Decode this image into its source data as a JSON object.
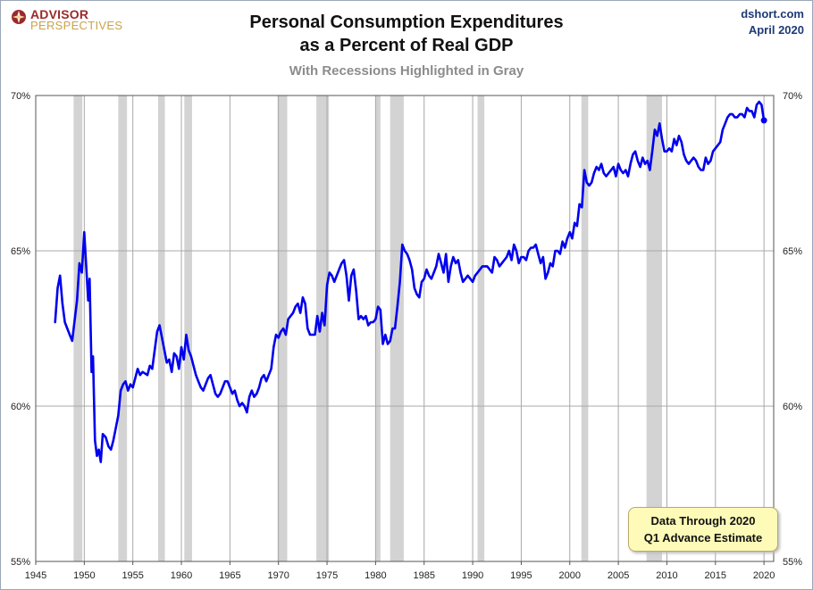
{
  "logo": {
    "line1": "ADVISOR",
    "line2": "PERSPECTIVES",
    "icon": "compass-icon"
  },
  "header": {
    "title_line1": "Personal Consumption Expenditures",
    "title_line2": "as a Percent of Real GDP",
    "subtitle": "With Recessions Highlighted in Gray"
  },
  "source": {
    "site": "dshort.com",
    "date": "April 2020"
  },
  "note": {
    "line1": "Data Through 2020",
    "line2": "Q1 Advance Estimate"
  },
  "chart_data": {
    "type": "line",
    "title": "Personal Consumption Expenditures as a Percent of Real GDP",
    "subtitle": "With Recessions Highlighted in Gray",
    "xlim": [
      1945,
      2021
    ],
    "ylim": [
      55,
      70
    ],
    "x_ticks": [
      1945,
      1950,
      1955,
      1960,
      1965,
      1970,
      1975,
      1980,
      1985,
      1990,
      1995,
      2000,
      2005,
      2010,
      2015,
      2020
    ],
    "y_ticks": [
      55,
      60,
      65,
      70
    ],
    "y_tick_labels": [
      "55%",
      "60%",
      "65%",
      "70%"
    ],
    "grid": true,
    "line_color": "#0000ee",
    "recession_color": "#d3d3d3",
    "recessions": [
      [
        1948.9,
        1949.8
      ],
      [
        1953.5,
        1954.4
      ],
      [
        1957.6,
        1958.3
      ],
      [
        1960.3,
        1961.1
      ],
      [
        1969.9,
        1970.9
      ],
      [
        1973.9,
        1975.2
      ],
      [
        1980.0,
        1980.5
      ],
      [
        1981.5,
        1982.9
      ],
      [
        1990.5,
        1991.2
      ],
      [
        2001.2,
        2001.9
      ],
      [
        2007.9,
        2009.5
      ]
    ],
    "series": [
      {
        "values": [
          [
            1947.0,
            62.7
          ],
          [
            1947.25,
            63.8
          ],
          [
            1947.5,
            64.2
          ],
          [
            1947.75,
            63.3
          ],
          [
            1948.0,
            62.7
          ],
          [
            1948.5,
            62.3
          ],
          [
            1948.75,
            62.1
          ],
          [
            1949.25,
            63.4
          ],
          [
            1949.5,
            64.6
          ],
          [
            1949.75,
            64.3
          ],
          [
            1950.0,
            65.6
          ],
          [
            1950.25,
            64.2
          ],
          [
            1950.4,
            63.4
          ],
          [
            1950.55,
            64.1
          ],
          [
            1950.75,
            61.1
          ],
          [
            1950.9,
            61.6
          ],
          [
            1951.1,
            58.9
          ],
          [
            1951.3,
            58.4
          ],
          [
            1951.5,
            58.6
          ],
          [
            1951.7,
            58.2
          ],
          [
            1951.9,
            59.1
          ],
          [
            1952.2,
            59.0
          ],
          [
            1952.5,
            58.7
          ],
          [
            1952.75,
            58.6
          ],
          [
            1953.0,
            58.9
          ],
          [
            1953.5,
            59.7
          ],
          [
            1953.75,
            60.5
          ],
          [
            1954.0,
            60.7
          ],
          [
            1954.25,
            60.8
          ],
          [
            1954.5,
            60.5
          ],
          [
            1954.75,
            60.7
          ],
          [
            1955.0,
            60.6
          ],
          [
            1955.5,
            61.2
          ],
          [
            1955.75,
            61.0
          ],
          [
            1956.0,
            61.1
          ],
          [
            1956.5,
            61.0
          ],
          [
            1956.75,
            61.3
          ],
          [
            1957.0,
            61.2
          ],
          [
            1957.5,
            62.4
          ],
          [
            1957.75,
            62.6
          ],
          [
            1958.0,
            62.2
          ],
          [
            1958.5,
            61.4
          ],
          [
            1958.75,
            61.5
          ],
          [
            1959.0,
            61.1
          ],
          [
            1959.25,
            61.7
          ],
          [
            1959.5,
            61.6
          ],
          [
            1959.75,
            61.2
          ],
          [
            1960.0,
            61.9
          ],
          [
            1960.25,
            61.5
          ],
          [
            1960.5,
            62.3
          ],
          [
            1960.75,
            61.8
          ],
          [
            1961.0,
            61.6
          ],
          [
            1961.25,
            61.3
          ],
          [
            1961.5,
            61.0
          ],
          [
            1961.75,
            60.8
          ],
          [
            1962.0,
            60.6
          ],
          [
            1962.25,
            60.5
          ],
          [
            1962.5,
            60.7
          ],
          [
            1962.75,
            60.9
          ],
          [
            1963.0,
            61.0
          ],
          [
            1963.25,
            60.7
          ],
          [
            1963.5,
            60.4
          ],
          [
            1963.75,
            60.3
          ],
          [
            1964.0,
            60.4
          ],
          [
            1964.25,
            60.6
          ],
          [
            1964.5,
            60.8
          ],
          [
            1964.75,
            60.8
          ],
          [
            1965.0,
            60.6
          ],
          [
            1965.25,
            60.4
          ],
          [
            1965.5,
            60.5
          ],
          [
            1965.75,
            60.2
          ],
          [
            1966.0,
            60.0
          ],
          [
            1966.25,
            60.1
          ],
          [
            1966.5,
            60.0
          ],
          [
            1966.75,
            59.8
          ],
          [
            1967.0,
            60.3
          ],
          [
            1967.25,
            60.5
          ],
          [
            1967.5,
            60.3
          ],
          [
            1967.75,
            60.4
          ],
          [
            1968.0,
            60.6
          ],
          [
            1968.25,
            60.9
          ],
          [
            1968.5,
            61.0
          ],
          [
            1968.75,
            60.8
          ],
          [
            1969.0,
            61.0
          ],
          [
            1969.25,
            61.2
          ],
          [
            1969.5,
            61.9
          ],
          [
            1969.75,
            62.3
          ],
          [
            1970.0,
            62.2
          ],
          [
            1970.25,
            62.4
          ],
          [
            1970.5,
            62.5
          ],
          [
            1970.75,
            62.3
          ],
          [
            1971.0,
            62.8
          ],
          [
            1971.25,
            62.9
          ],
          [
            1971.5,
            63.0
          ],
          [
            1971.75,
            63.2
          ],
          [
            1972.0,
            63.3
          ],
          [
            1972.25,
            63.0
          ],
          [
            1972.5,
            63.5
          ],
          [
            1972.75,
            63.3
          ],
          [
            1973.0,
            62.5
          ],
          [
            1973.25,
            62.3
          ],
          [
            1973.5,
            62.3
          ],
          [
            1973.75,
            62.3
          ],
          [
            1974.0,
            62.9
          ],
          [
            1974.25,
            62.4
          ],
          [
            1974.5,
            63.0
          ],
          [
            1974.75,
            62.6
          ],
          [
            1975.0,
            63.9
          ],
          [
            1975.25,
            64.3
          ],
          [
            1975.5,
            64.2
          ],
          [
            1975.75,
            64.0
          ],
          [
            1976.0,
            64.2
          ],
          [
            1976.25,
            64.4
          ],
          [
            1976.5,
            64.6
          ],
          [
            1976.75,
            64.7
          ],
          [
            1977.0,
            64.2
          ],
          [
            1977.25,
            63.4
          ],
          [
            1977.5,
            64.2
          ],
          [
            1977.75,
            64.4
          ],
          [
            1978.0,
            63.7
          ],
          [
            1978.25,
            62.8
          ],
          [
            1978.5,
            62.9
          ],
          [
            1978.75,
            62.8
          ],
          [
            1979.0,
            62.9
          ],
          [
            1979.25,
            62.6
          ],
          [
            1979.5,
            62.7
          ],
          [
            1979.75,
            62.7
          ],
          [
            1980.0,
            62.8
          ],
          [
            1980.25,
            63.2
          ],
          [
            1980.5,
            63.1
          ],
          [
            1980.75,
            62.0
          ],
          [
            1981.0,
            62.3
          ],
          [
            1981.25,
            62.0
          ],
          [
            1981.5,
            62.1
          ],
          [
            1981.75,
            62.5
          ],
          [
            1982.0,
            62.5
          ],
          [
            1982.25,
            63.2
          ],
          [
            1982.5,
            64.0
          ],
          [
            1982.75,
            65.2
          ],
          [
            1983.0,
            65.0
          ],
          [
            1983.25,
            64.9
          ],
          [
            1983.5,
            64.7
          ],
          [
            1983.75,
            64.4
          ],
          [
            1984.0,
            63.8
          ],
          [
            1984.25,
            63.6
          ],
          [
            1984.5,
            63.5
          ],
          [
            1984.75,
            64.0
          ],
          [
            1985.0,
            64.1
          ],
          [
            1985.25,
            64.4
          ],
          [
            1985.5,
            64.2
          ],
          [
            1985.75,
            64.1
          ],
          [
            1986.0,
            64.3
          ],
          [
            1986.25,
            64.5
          ],
          [
            1986.5,
            64.9
          ],
          [
            1986.75,
            64.6
          ],
          [
            1987.0,
            64.3
          ],
          [
            1987.25,
            64.9
          ],
          [
            1987.5,
            64.0
          ],
          [
            1987.75,
            64.5
          ],
          [
            1988.0,
            64.8
          ],
          [
            1988.25,
            64.6
          ],
          [
            1988.5,
            64.7
          ],
          [
            1988.75,
            64.3
          ],
          [
            1989.0,
            64.0
          ],
          [
            1989.25,
            64.1
          ],
          [
            1989.5,
            64.2
          ],
          [
            1989.75,
            64.1
          ],
          [
            1990.0,
            64.0
          ],
          [
            1990.25,
            64.2
          ],
          [
            1990.5,
            64.3
          ],
          [
            1990.75,
            64.4
          ],
          [
            1991.0,
            64.5
          ],
          [
            1991.5,
            64.5
          ],
          [
            1991.75,
            64.4
          ],
          [
            1992.0,
            64.3
          ],
          [
            1992.25,
            64.8
          ],
          [
            1992.5,
            64.7
          ],
          [
            1992.75,
            64.5
          ],
          [
            1993.0,
            64.6
          ],
          [
            1993.5,
            64.8
          ],
          [
            1993.75,
            65.0
          ],
          [
            1994.0,
            64.7
          ],
          [
            1994.25,
            65.2
          ],
          [
            1994.5,
            65.0
          ],
          [
            1994.75,
            64.6
          ],
          [
            1995.0,
            64.8
          ],
          [
            1995.25,
            64.8
          ],
          [
            1995.5,
            64.7
          ],
          [
            1995.75,
            65.0
          ],
          [
            1996.0,
            65.1
          ],
          [
            1996.25,
            65.1
          ],
          [
            1996.5,
            65.2
          ],
          [
            1996.75,
            64.9
          ],
          [
            1997.0,
            64.6
          ],
          [
            1997.25,
            64.8
          ],
          [
            1997.5,
            64.1
          ],
          [
            1997.75,
            64.3
          ],
          [
            1998.0,
            64.6
          ],
          [
            1998.25,
            64.5
          ],
          [
            1998.5,
            65.0
          ],
          [
            1998.75,
            65.0
          ],
          [
            1999.0,
            64.9
          ],
          [
            1999.25,
            65.3
          ],
          [
            1999.5,
            65.1
          ],
          [
            1999.75,
            65.4
          ],
          [
            2000.0,
            65.6
          ],
          [
            2000.25,
            65.4
          ],
          [
            2000.5,
            65.9
          ],
          [
            2000.75,
            65.8
          ],
          [
            2001.0,
            66.5
          ],
          [
            2001.25,
            66.4
          ],
          [
            2001.5,
            67.6
          ],
          [
            2001.75,
            67.2
          ],
          [
            2002.0,
            67.1
          ],
          [
            2002.25,
            67.2
          ],
          [
            2002.5,
            67.5
          ],
          [
            2002.75,
            67.7
          ],
          [
            2003.0,
            67.6
          ],
          [
            2003.25,
            67.8
          ],
          [
            2003.5,
            67.5
          ],
          [
            2003.75,
            67.4
          ],
          [
            2004.0,
            67.5
          ],
          [
            2004.25,
            67.6
          ],
          [
            2004.5,
            67.7
          ],
          [
            2004.75,
            67.4
          ],
          [
            2005.0,
            67.8
          ],
          [
            2005.25,
            67.6
          ],
          [
            2005.5,
            67.5
          ],
          [
            2005.75,
            67.6
          ],
          [
            2006.0,
            67.4
          ],
          [
            2006.25,
            67.8
          ],
          [
            2006.5,
            68.1
          ],
          [
            2006.75,
            68.2
          ],
          [
            2007.0,
            67.9
          ],
          [
            2007.25,
            67.7
          ],
          [
            2007.5,
            68.0
          ],
          [
            2007.75,
            67.8
          ],
          [
            2008.0,
            67.9
          ],
          [
            2008.25,
            67.6
          ],
          [
            2008.5,
            68.2
          ],
          [
            2008.75,
            68.9
          ],
          [
            2009.0,
            68.7
          ],
          [
            2009.25,
            69.1
          ],
          [
            2009.5,
            68.6
          ],
          [
            2009.75,
            68.2
          ],
          [
            2010.0,
            68.2
          ],
          [
            2010.25,
            68.3
          ],
          [
            2010.5,
            68.2
          ],
          [
            2010.75,
            68.6
          ],
          [
            2011.0,
            68.4
          ],
          [
            2011.25,
            68.7
          ],
          [
            2011.5,
            68.5
          ],
          [
            2011.75,
            68.1
          ],
          [
            2012.0,
            67.9
          ],
          [
            2012.25,
            67.8
          ],
          [
            2012.5,
            67.9
          ],
          [
            2012.75,
            68.0
          ],
          [
            2013.0,
            67.9
          ],
          [
            2013.25,
            67.7
          ],
          [
            2013.5,
            67.6
          ],
          [
            2013.75,
            67.6
          ],
          [
            2014.0,
            68.0
          ],
          [
            2014.25,
            67.8
          ],
          [
            2014.5,
            67.9
          ],
          [
            2014.75,
            68.2
          ],
          [
            2015.0,
            68.3
          ],
          [
            2015.5,
            68.5
          ],
          [
            2015.75,
            68.9
          ],
          [
            2016.0,
            69.1
          ],
          [
            2016.25,
            69.3
          ],
          [
            2016.5,
            69.4
          ],
          [
            2016.75,
            69.4
          ],
          [
            2017.0,
            69.3
          ],
          [
            2017.25,
            69.3
          ],
          [
            2017.5,
            69.4
          ],
          [
            2017.75,
            69.4
          ],
          [
            2018.0,
            69.3
          ],
          [
            2018.25,
            69.6
          ],
          [
            2018.5,
            69.5
          ],
          [
            2018.75,
            69.5
          ],
          [
            2019.0,
            69.3
          ],
          [
            2019.25,
            69.7
          ],
          [
            2019.5,
            69.8
          ],
          [
            2019.75,
            69.7
          ],
          [
            2020.0,
            69.2
          ]
        ]
      }
    ]
  }
}
